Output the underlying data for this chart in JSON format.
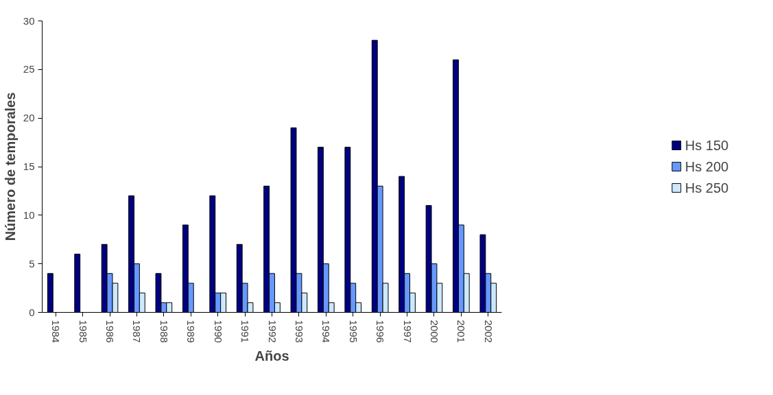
{
  "chart_data": {
    "type": "bar",
    "xlabel": "Años",
    "ylabel": "Número de temporales",
    "categories": [
      "1984",
      "1985",
      "1986",
      "1987",
      "1988",
      "1989",
      "1990",
      "1991",
      "1992",
      "1993",
      "1994",
      "1995",
      "1996",
      "1997",
      "2000",
      "2001",
      "2002"
    ],
    "series": [
      {
        "name": "Hs 150",
        "color": "#000080",
        "values": [
          4,
          6,
          7,
          12,
          4,
          9,
          12,
          7,
          13,
          19,
          17,
          17,
          28,
          14,
          11,
          26,
          8
        ]
      },
      {
        "name": "Hs 200",
        "color": "#6699ff",
        "values": [
          null,
          null,
          4,
          5,
          1,
          3,
          2,
          3,
          4,
          4,
          5,
          3,
          13,
          4,
          5,
          9,
          4
        ]
      },
      {
        "name": "Hs 250",
        "color": "#cce8ff",
        "values": [
          null,
          null,
          3,
          2,
          1,
          null,
          2,
          1,
          1,
          2,
          1,
          1,
          3,
          2,
          3,
          4,
          3
        ]
      }
    ],
    "ylim": [
      0,
      30
    ],
    "yticks": [
      0,
      5,
      10,
      15,
      20,
      25,
      30
    ],
    "grid": false,
    "legend": "right"
  }
}
